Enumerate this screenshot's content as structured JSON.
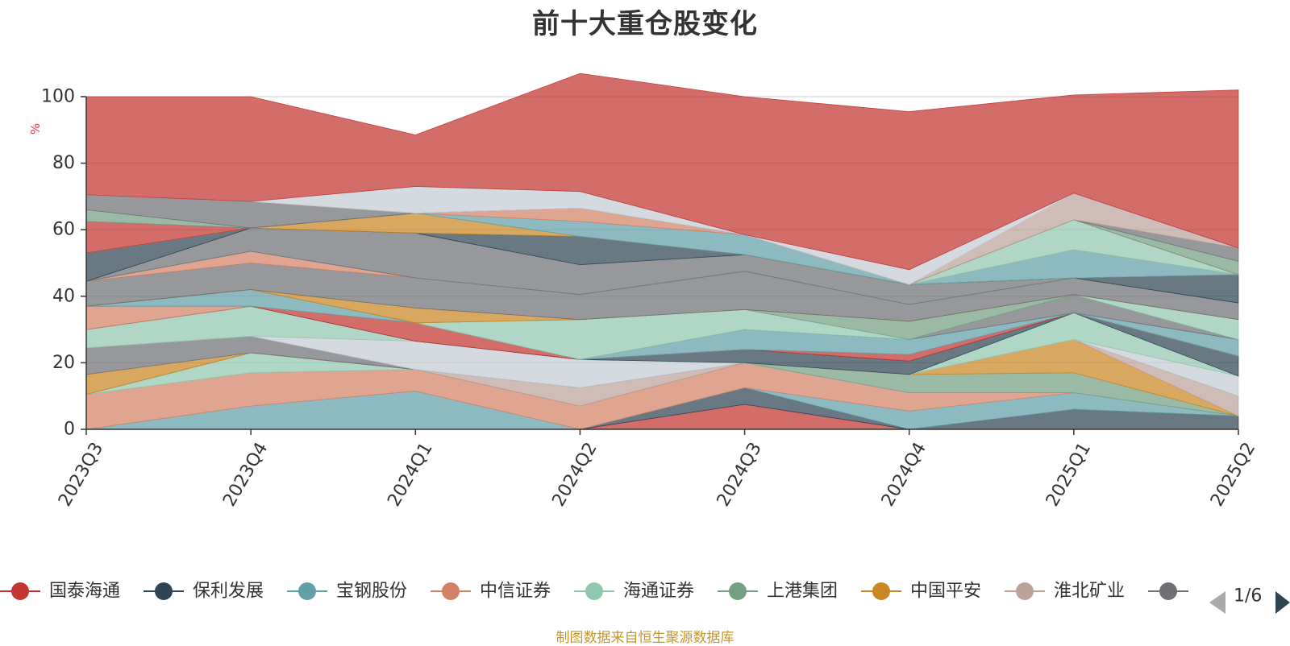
{
  "title": "前十大重仓股变化",
  "source_note": "制图数据来自恒生聚源数据库",
  "legend": {
    "page_indicator": "1/6",
    "prev_icon": "triangle-left-icon",
    "next_icon": "triangle-right-icon"
  },
  "chart_data": {
    "type": "area",
    "stacked": true,
    "title": "前十大重仓股变化",
    "ylabel": "%",
    "ylim": [
      0,
      100
    ],
    "yticks": [
      0,
      20,
      40,
      60,
      80,
      100
    ],
    "grid": true,
    "legend_position": "bottom",
    "categories": [
      "2023Q3",
      "2023Q4",
      "2024Q1",
      "2024Q2",
      "2024Q3",
      "2024Q4",
      "2025Q1",
      "2025Q2"
    ],
    "series": [
      {
        "name": "国泰海通",
        "color": "#c23531",
        "values": [
          0,
          0,
          0,
          0,
          7.5,
          0,
          0,
          0
        ]
      },
      {
        "name": "保利发展",
        "color": "#2f4554",
        "values": [
          0,
          0,
          0,
          0,
          5,
          0,
          6,
          4
        ]
      },
      {
        "name": "宝钢股份",
        "color": "#61a0a8",
        "values": [
          0,
          7,
          11.5,
          0,
          0,
          5.5,
          5,
          0
        ]
      },
      {
        "name": "中信证券",
        "color": "#d48265",
        "values": [
          10.5,
          10,
          6.5,
          7,
          7.5,
          5.5,
          0,
          0
        ]
      },
      {
        "name": "海通证券",
        "color": "#91c7ae",
        "values": [
          0,
          6,
          0,
          0,
          0,
          0,
          0,
          0
        ]
      },
      {
        "name": "上港集团",
        "color": "#749f83",
        "values": [
          0,
          0,
          0,
          0,
          0,
          5.5,
          6,
          0
        ]
      },
      {
        "name": "中国平安",
        "color": "#ca8622",
        "values": [
          6,
          0,
          0,
          0,
          0,
          0,
          10,
          0
        ]
      },
      {
        "name": "淮北矿业",
        "color": "#bda29a",
        "values": [
          0,
          0,
          0,
          5.5,
          0,
          0,
          0,
          6
        ]
      },
      {
        "name": "",
        "color": "#6e7074",
        "values": [
          8,
          5,
          0,
          0,
          0,
          0,
          0,
          0
        ]
      },
      {
        "name": "",
        "color": "#c4ccd3",
        "values": [
          0,
          0,
          8.5,
          8.5,
          0,
          0,
          0,
          6
        ]
      },
      {
        "name": "",
        "color": "#91c7ae",
        "values": [
          5.5,
          9,
          0,
          0,
          0,
          0,
          8,
          0
        ]
      },
      {
        "name": "",
        "color": "#2f4554",
        "values": [
          0,
          0,
          0,
          0,
          4,
          4,
          0,
          6
        ]
      },
      {
        "name": "",
        "color": "#c23531",
        "values": [
          0,
          0,
          5.5,
          0,
          0,
          2,
          0,
          0
        ]
      },
      {
        "name": "",
        "color": "#d48265",
        "values": [
          7,
          0,
          0,
          0,
          0,
          0,
          0,
          0
        ]
      },
      {
        "name": "",
        "color": "#61a0a8",
        "values": [
          0,
          5,
          0,
          0,
          6,
          4.5,
          0,
          5
        ]
      },
      {
        "name": "",
        "color": "#6e7074",
        "values": [
          0,
          0,
          0,
          0,
          0,
          0,
          5.5,
          0
        ]
      },
      {
        "name": "",
        "color": "#91c7ae",
        "values": [
          0,
          0,
          0,
          12,
          6,
          0,
          0,
          6
        ]
      },
      {
        "name": "",
        "color": "#749f83",
        "values": [
          0,
          0,
          0,
          0,
          0,
          5.5,
          0,
          0
        ]
      },
      {
        "name": "",
        "color": "#ca8622",
        "values": [
          0,
          0,
          4.5,
          0,
          0,
          0,
          0,
          0
        ]
      },
      {
        "name": "",
        "color": "#6e7074",
        "values": [
          7.5,
          8,
          9,
          7.5,
          11.5,
          5,
          5,
          5
        ]
      },
      {
        "name": "",
        "color": "#d48265",
        "values": [
          0,
          3.5,
          0,
          0,
          0,
          0,
          0,
          0
        ]
      },
      {
        "name": "",
        "color": "#61a0a8",
        "values": [
          0,
          0,
          0,
          0,
          0,
          0,
          0,
          0
        ]
      },
      {
        "name": "",
        "color": "#91c7ae",
        "values": [
          0,
          0,
          0,
          0,
          0,
          0,
          0,
          0
        ]
      },
      {
        "name": "",
        "color": "#6e7074",
        "values": [
          0,
          7,
          13.5,
          9,
          5,
          6,
          0,
          0
        ]
      },
      {
        "name": "",
        "color": "#2f4554",
        "values": [
          8.5,
          0,
          0,
          8.5,
          0,
          0,
          0,
          8.5
        ]
      },
      {
        "name": "",
        "color": "#ca8622",
        "values": [
          0,
          0,
          6,
          0,
          0,
          0,
          0,
          0
        ]
      },
      {
        "name": "",
        "color": "#61a0a8",
        "values": [
          0,
          0,
          0,
          4.5,
          6,
          0,
          8.5,
          0
        ]
      },
      {
        "name": "",
        "color": "#d48265",
        "values": [
          0,
          0,
          0,
          4,
          0,
          0,
          0,
          0
        ]
      },
      {
        "name": "",
        "color": "#91c7ae",
        "values": [
          0,
          0,
          0,
          0,
          0,
          0,
          9,
          0
        ]
      },
      {
        "name": "",
        "color": "#c23531",
        "values": [
          9.5,
          0,
          0,
          0,
          0,
          0,
          0,
          0
        ]
      },
      {
        "name": "",
        "color": "#749f83",
        "values": [
          3.5,
          0,
          0,
          0,
          0,
          0,
          0,
          4
        ]
      },
      {
        "name": "",
        "color": "#6e7074",
        "values": [
          4.5,
          8,
          0,
          0,
          0,
          0,
          0,
          4
        ]
      },
      {
        "name": "",
        "color": "#bda29a",
        "values": [
          0,
          0,
          0,
          0,
          0,
          0,
          8,
          0
        ]
      },
      {
        "name": "",
        "color": "#c4ccd3",
        "values": [
          0,
          0,
          8,
          5,
          0,
          4.5,
          0,
          0
        ]
      },
      {
        "name": "",
        "color": "#c23531",
        "values": [
          29.5,
          31.5,
          15.5,
          35.5,
          41.5,
          47.5,
          29.5,
          47.5
        ]
      }
    ]
  }
}
